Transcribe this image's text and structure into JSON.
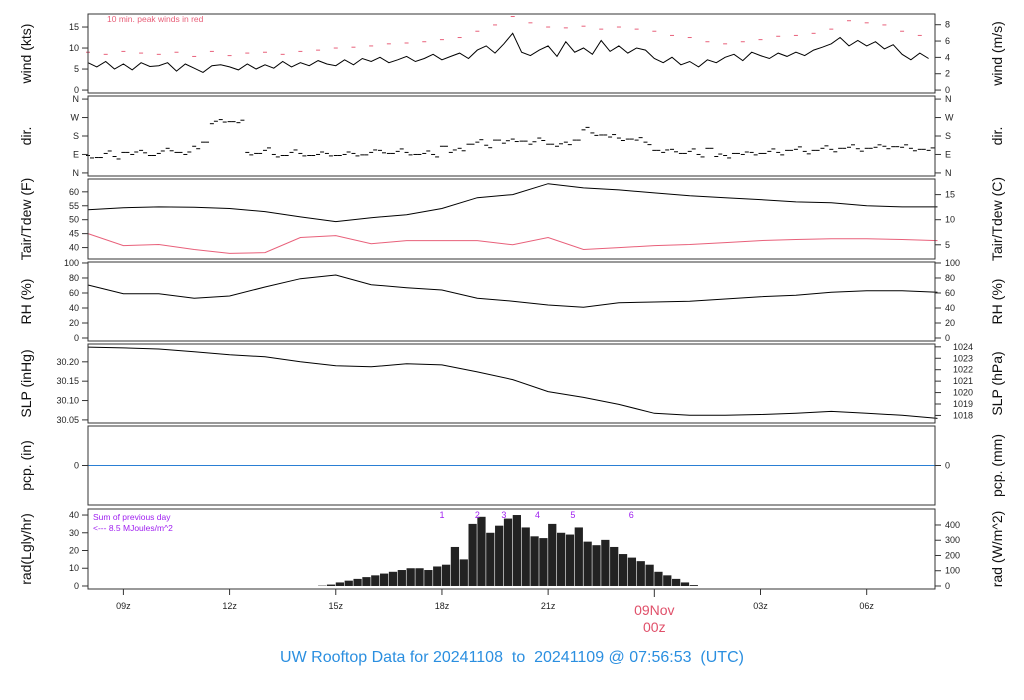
{
  "page_title": "UW Rooftop Data for 20241108  to  20241109 @ 07:56:53  (UTC)",
  "chart_data": {
    "type": "line",
    "title": "UW Rooftop Data for 20241108  to  20241109 @ 07:56:53  (UTC)",
    "time_axis": {
      "units": "hours UTC since 2024-11-08 00z",
      "xlim": [
        8.0,
        31.93
      ],
      "ticks": [
        {
          "value": 9,
          "label": "09z"
        },
        {
          "value": 12,
          "label": "12z"
        },
        {
          "value": 15,
          "label": "15z"
        },
        {
          "value": 18,
          "label": "18z"
        },
        {
          "value": 21,
          "label": "21z"
        },
        {
          "value": 27,
          "label": "03z"
        },
        {
          "value": 30,
          "label": "06z"
        }
      ],
      "day_tick": {
        "value": 24,
        "date_label": "09Nov",
        "hour_label": "00z",
        "color": "#e0506a"
      }
    },
    "panels": [
      {
        "id": "wind",
        "left_label": "wind (kts)",
        "right_label": "wind (m/s)",
        "ylim": [
          -0.7,
          18.1
        ],
        "annotation": {
          "text": "10 min. peak winds in red",
          "color": "#e8607a"
        },
        "left_ticks": [
          {
            "value": 0,
            "label": "0"
          },
          {
            "value": 5,
            "label": "5"
          },
          {
            "value": 10,
            "label": "10"
          },
          {
            "value": 15,
            "label": "15"
          }
        ],
        "right_ticks": [
          {
            "value": 0,
            "label": "0"
          },
          {
            "value": 2,
            "label": "2"
          },
          {
            "value": 4,
            "label": "4"
          },
          {
            "value": 6,
            "label": "6"
          },
          {
            "value": 8,
            "label": "8"
          }
        ],
        "series": [
          {
            "name": "wind speed",
            "type": "line",
            "color": "#000000",
            "x_start": 8.0,
            "x_step": 0.25,
            "values": [
              6.5,
              5.5,
              6.8,
              5.0,
              6.2,
              4.8,
              6.5,
              5.6,
              5.8,
              6.5,
              4.5,
              6.2,
              5.2,
              4.2,
              5.8,
              6.0,
              5.5,
              4.8,
              6.2,
              5.0,
              6.0,
              5.2,
              6.8,
              5.5,
              6.5,
              5.8,
              7.0,
              6.2,
              5.8,
              7.2,
              6.0,
              7.5,
              6.8,
              7.8,
              6.5,
              7.2,
              8.0,
              6.8,
              7.5,
              8.5,
              7.2,
              8.0,
              8.8,
              7.5,
              9.5,
              10.5,
              8.8,
              11.0,
              13.5,
              9.0,
              8.2,
              9.5,
              10.5,
              8.0,
              11.5,
              9.0,
              10.0,
              8.5,
              11.8,
              9.2,
              10.5,
              8.8,
              10.0,
              9.5,
              7.5,
              6.5,
              7.8,
              6.0,
              6.8,
              5.5,
              7.2,
              6.5,
              7.8,
              8.5,
              7.0,
              9.0,
              8.2,
              7.5,
              8.8,
              8.0,
              9.0,
              8.2,
              9.5,
              10.2,
              11.0,
              12.5,
              10.5,
              11.8,
              10.5,
              11.5,
              9.8,
              10.8,
              8.5,
              7.2,
              8.8,
              7.5
            ]
          },
          {
            "name": "10 min peak wind",
            "type": "dash",
            "color": "#e8607a",
            "x_start": 8.0,
            "x_step": 0.5,
            "values": [
              9.0,
              8.5,
              9.2,
              8.8,
              8.5,
              9.0,
              8.0,
              9.2,
              8.2,
              8.8,
              9.0,
              8.5,
              9.2,
              9.5,
              10.0,
              10.2,
              10.5,
              11.0,
              11.2,
              11.5,
              12.0,
              12.5,
              14.0,
              15.5,
              17.5,
              16.0,
              15.0,
              14.8,
              15.2,
              14.5,
              15.0,
              14.5,
              14.0,
              13.0,
              12.5,
              11.5,
              11.0,
              11.5,
              12.0,
              12.8,
              13.0,
              13.5,
              14.5,
              16.5,
              16.0,
              15.5,
              14.0,
              13.0
            ]
          }
        ]
      },
      {
        "id": "dir",
        "left_label": "dir.",
        "right_label": "dir.",
        "ylim": [
          -15,
          375
        ],
        "left_ticks": [
          {
            "value": 0,
            "label": "N"
          },
          {
            "value": 90,
            "label": "E"
          },
          {
            "value": 180,
            "label": "S"
          },
          {
            "value": 270,
            "label": "W"
          },
          {
            "value": 360,
            "label": "N"
          }
        ],
        "right_ticks": [
          {
            "value": 0,
            "label": "N"
          },
          {
            "value": 90,
            "label": "E"
          },
          {
            "value": 180,
            "label": "S"
          },
          {
            "value": 270,
            "label": "W"
          },
          {
            "value": 360,
            "label": "N"
          }
        ],
        "series": [
          {
            "name": "wind direction (deg)",
            "type": "dash",
            "color": "#000000",
            "x_start": 8.0,
            "x_step": 0.25,
            "values": [
              85,
              75,
              95,
              80,
              100,
              90,
              110,
              85,
              95,
              120,
              100,
              90,
              130,
              150,
              240,
              260,
              250,
              245,
              100,
              95,
              110,
              90,
              85,
              100,
              95,
              85,
              90,
              95,
              85,
              90,
              95,
              88,
              100,
              110,
              95,
              105,
              100,
              90,
              95,
              90,
              130,
              100,
              120,
              140,
              150,
              135,
              160,
              145,
              165,
              155,
              140,
              170,
              140,
              130,
              150,
              160,
              210,
              195,
              185,
              175,
              170,
              165,
              160,
              150,
              110,
              100,
              115,
              95,
              105,
              90,
              120,
              80,
              85,
              95,
              90,
              100,
              95,
              105,
              100,
              110,
              115,
              105,
              110,
              120,
              115,
              120,
              125,
              118,
              120,
              125,
              130,
              128,
              125,
              120,
              115,
              110
            ]
          }
        ]
      },
      {
        "id": "temp",
        "left_label": "Tair/Tdew (F)",
        "right_label": "Tair/Tdew (C)",
        "ylim": [
          35.9,
          64.6
        ],
        "left_ticks": [
          {
            "value": 40,
            "label": "40"
          },
          {
            "value": 45,
            "label": "45"
          },
          {
            "value": 50,
            "label": "50"
          },
          {
            "value": 55,
            "label": "55"
          },
          {
            "value": 60,
            "label": "60"
          }
        ],
        "right_ticks": [
          {
            "value": 5,
            "label": "5"
          },
          {
            "value": 10,
            "label": "10"
          },
          {
            "value": 15,
            "label": "15"
          }
        ],
        "series": [
          {
            "name": "Tair",
            "type": "line",
            "color": "#000000",
            "x_start": 8.0,
            "x_step": 1.0,
            "values": [
              53.6,
              54.3,
              54.6,
              54.5,
              54.0,
              52.9,
              51.0,
              49.3,
              50.7,
              51.8,
              54.0,
              57.9,
              59.0,
              62.9,
              61.4,
              60.7,
              59.6,
              58.6,
              57.9,
              57.2,
              56.4,
              56.1,
              55.0,
              54.6,
              54.6
            ]
          },
          {
            "name": "Tdew",
            "type": "line",
            "color": "#e8607a",
            "x_start": 8.0,
            "x_step": 1.0,
            "values": [
              45.0,
              40.7,
              41.1,
              39.3,
              37.9,
              38.2,
              43.6,
              44.3,
              41.4,
              42.5,
              42.5,
              42.5,
              41.0,
              43.6,
              39.3,
              40.0,
              40.7,
              41.1,
              41.8,
              42.5,
              42.9,
              43.2,
              43.2,
              42.9,
              42.5
            ]
          }
        ]
      },
      {
        "id": "rh",
        "left_label": "RH (%)",
        "right_label": "RH (%)",
        "ylim": [
          -4,
          101.3
        ],
        "left_ticks": [
          {
            "value": 0,
            "label": "0"
          },
          {
            "value": 20,
            "label": "20"
          },
          {
            "value": 40,
            "label": "40"
          },
          {
            "value": 60,
            "label": "60"
          },
          {
            "value": 80,
            "label": "80"
          },
          {
            "value": 100,
            "label": "100"
          }
        ],
        "right_ticks": [
          {
            "value": 0,
            "label": "0"
          },
          {
            "value": 20,
            "label": "20"
          },
          {
            "value": 40,
            "label": "40"
          },
          {
            "value": 60,
            "label": "60"
          },
          {
            "value": 80,
            "label": "80"
          },
          {
            "value": 100,
            "label": "100"
          }
        ],
        "series": [
          {
            "name": "RH",
            "type": "line",
            "color": "#000000",
            "x_start": 8.0,
            "x_step": 1.0,
            "values": [
              70.7,
              59,
              59,
              53,
              56,
              68,
              79,
              84,
              71,
              67,
              64,
              53,
              49,
              44,
              41,
              47,
              48,
              49,
              52,
              55,
              57,
              61,
              63,
              63,
              61
            ]
          }
        ]
      },
      {
        "id": "slp",
        "left_label": "SLP (inHg)",
        "right_label": "SLP (hPa)",
        "ylim": [
          30.042,
          30.246
        ],
        "left_ticks": [
          {
            "value": 30.05,
            "label": "30.05"
          },
          {
            "value": 30.1,
            "label": "30.10"
          },
          {
            "value": 30.15,
            "label": "30.15"
          },
          {
            "value": 30.2,
            "label": "30.20"
          }
        ],
        "right_ticks": [
          {
            "value": 1018,
            "label": "1018"
          },
          {
            "value": 1019,
            "label": "1019"
          },
          {
            "value": 1020,
            "label": "1020"
          },
          {
            "value": 1021,
            "label": "1021"
          },
          {
            "value": 1022,
            "label": "1022"
          },
          {
            "value": 1023,
            "label": "1023"
          },
          {
            "value": 1024,
            "label": "1024"
          }
        ],
        "series": [
          {
            "name": "SLP",
            "type": "line",
            "color": "#000000",
            "x_start": 8.0,
            "x_step": 1.0,
            "values": [
              30.238,
              30.236,
              30.233,
              30.226,
              30.218,
              30.213,
              30.2,
              30.19,
              30.187,
              30.195,
              30.192,
              30.174,
              30.154,
              30.123,
              30.108,
              30.09,
              30.067,
              30.062,
              30.062,
              30.064,
              30.067,
              30.072,
              30.067,
              30.062,
              30.054
            ]
          }
        ]
      },
      {
        "id": "pcp",
        "left_label": "pcp. (in)",
        "right_label": "pcp. (mm)",
        "ylim": [
          -1,
          1
        ],
        "left_ticks": [
          {
            "value": 0,
            "label": "0"
          }
        ],
        "right_ticks": [
          {
            "value": 0,
            "label": "0"
          }
        ],
        "series": [
          {
            "name": "precipitation",
            "type": "line",
            "color": "#2a7fd4",
            "x_start": 8.0,
            "x_step": 23.93,
            "values": [
              0,
              0
            ]
          }
        ]
      },
      {
        "id": "rad",
        "left_label": "rad(Lgly/hr)",
        "right_label": "rad (W/m^2)",
        "ylim": [
          -1.7,
          43.4
        ],
        "annotation_lines": [
          "Sum of previous day",
          "<--- 8.5 MJoules/m^2"
        ],
        "annotation_color": "#a020f0",
        "markers": [
          {
            "value": 18.0,
            "label": "1"
          },
          {
            "value": 19.0,
            "label": "2"
          },
          {
            "value": 19.75,
            "label": "3"
          },
          {
            "value": 20.7,
            "label": "4"
          },
          {
            "value": 21.7,
            "label": "5"
          },
          {
            "value": 23.35,
            "label": "6"
          }
        ],
        "left_ticks": [
          {
            "value": 0,
            "label": "0"
          },
          {
            "value": 10,
            "label": "10"
          },
          {
            "value": 20,
            "label": "20"
          },
          {
            "value": 30,
            "label": "30"
          },
          {
            "value": 40,
            "label": "40"
          }
        ],
        "right_ticks": [
          {
            "value": 0,
            "label": "0"
          },
          {
            "value": 100,
            "label": "100"
          },
          {
            "value": 200,
            "label": "200"
          },
          {
            "value": 300,
            "label": "300"
          },
          {
            "value": 400,
            "label": "400"
          }
        ],
        "series": [
          {
            "name": "solar radiation",
            "type": "bar",
            "color": "#222222",
            "x_start": 14.5,
            "x_step": 0.25,
            "values": [
              0.2,
              0.8,
              2,
              3,
              4,
              5,
              6,
              7,
              8,
              9,
              10,
              10,
              9,
              11,
              12,
              22,
              15,
              35,
              39,
              30,
              34,
              38,
              40,
              33,
              28,
              27,
              35,
              30,
              29,
              33,
              25,
              23,
              26,
              22,
              18,
              16,
              14,
              12,
              8,
              6,
              4,
              2,
              0.5,
              0
            ]
          }
        ]
      }
    ]
  }
}
